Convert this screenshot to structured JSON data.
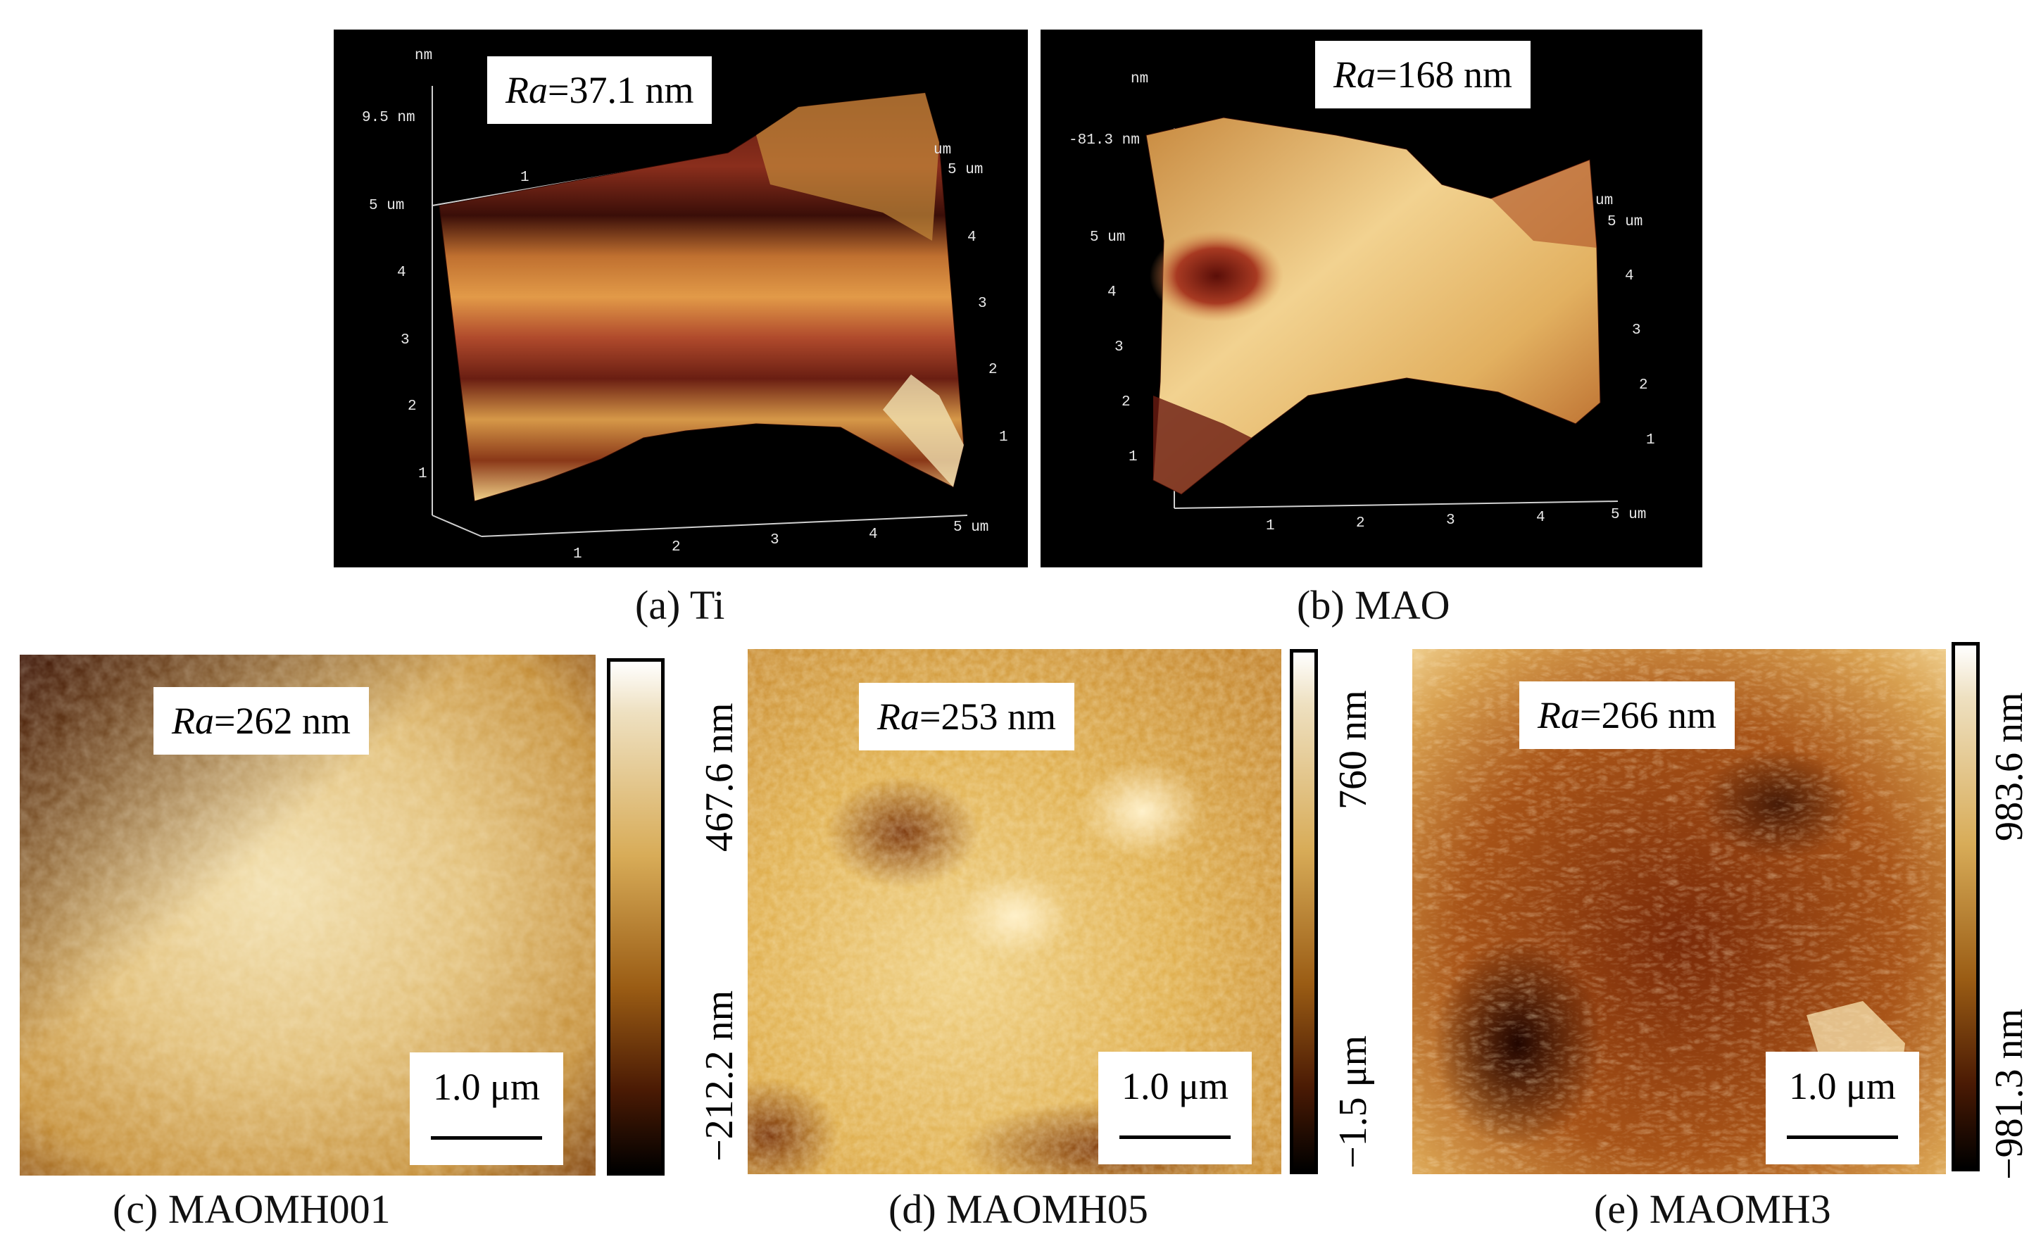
{
  "panels": {
    "a": {
      "ra": {
        "label": "Ra",
        "value": "=37.1 nm"
      },
      "caption": "(a) Ti",
      "axis": {
        "z_unit": "nm",
        "z_max": "9.5 nm",
        "y_unit": "um",
        "x_unit": "um",
        "left_ticks": [
          "5 um",
          "4",
          "3",
          "2",
          "1"
        ],
        "right_ticks": [
          "5 um",
          "4",
          "3",
          "2",
          "1"
        ],
        "bottom_ticks": [
          "1",
          "2",
          "3",
          "4",
          "5 um"
        ],
        "back_tick": "1"
      }
    },
    "b": {
      "ra": {
        "label": "Ra",
        "value": "=168 nm"
      },
      "caption": "(b) MAO",
      "axis": {
        "z_unit": "nm",
        "z_max": "-81.3 nm",
        "y_unit": "um",
        "x_unit": "um",
        "left_ticks": [
          "5 um",
          "4",
          "3",
          "2",
          "1"
        ],
        "right_ticks": [
          "5 um",
          "4",
          "3",
          "2",
          "1"
        ],
        "bottom_ticks": [
          "1",
          "2",
          "3",
          "4",
          "5 um"
        ]
      }
    },
    "c": {
      "ra": {
        "label": "Ra",
        "value": "=262 nm"
      },
      "caption": "(c) MAOMH001",
      "scale_bar": "1.0 μm",
      "colorbar": {
        "max": "467.6 nm",
        "min": "−212.2 nm"
      }
    },
    "d": {
      "ra": {
        "label": "Ra",
        "value": "=253 nm"
      },
      "caption": "(d) MAOMH05",
      "scale_bar": "1.0 μm",
      "colorbar": {
        "max": "760 nm",
        "min": "−1.5 μm"
      }
    },
    "e": {
      "ra": {
        "label": "Ra",
        "value": "=266 nm"
      },
      "caption": "(e) MAOMH3",
      "scale_bar": "1.0 μm",
      "colorbar": {
        "max": "983.6 nm",
        "min": "−981.3 nm"
      }
    }
  },
  "colors": {
    "afm_dark": "#3a0e06",
    "afm_mid": "#b06a22",
    "afm_light": "#f2d290"
  }
}
